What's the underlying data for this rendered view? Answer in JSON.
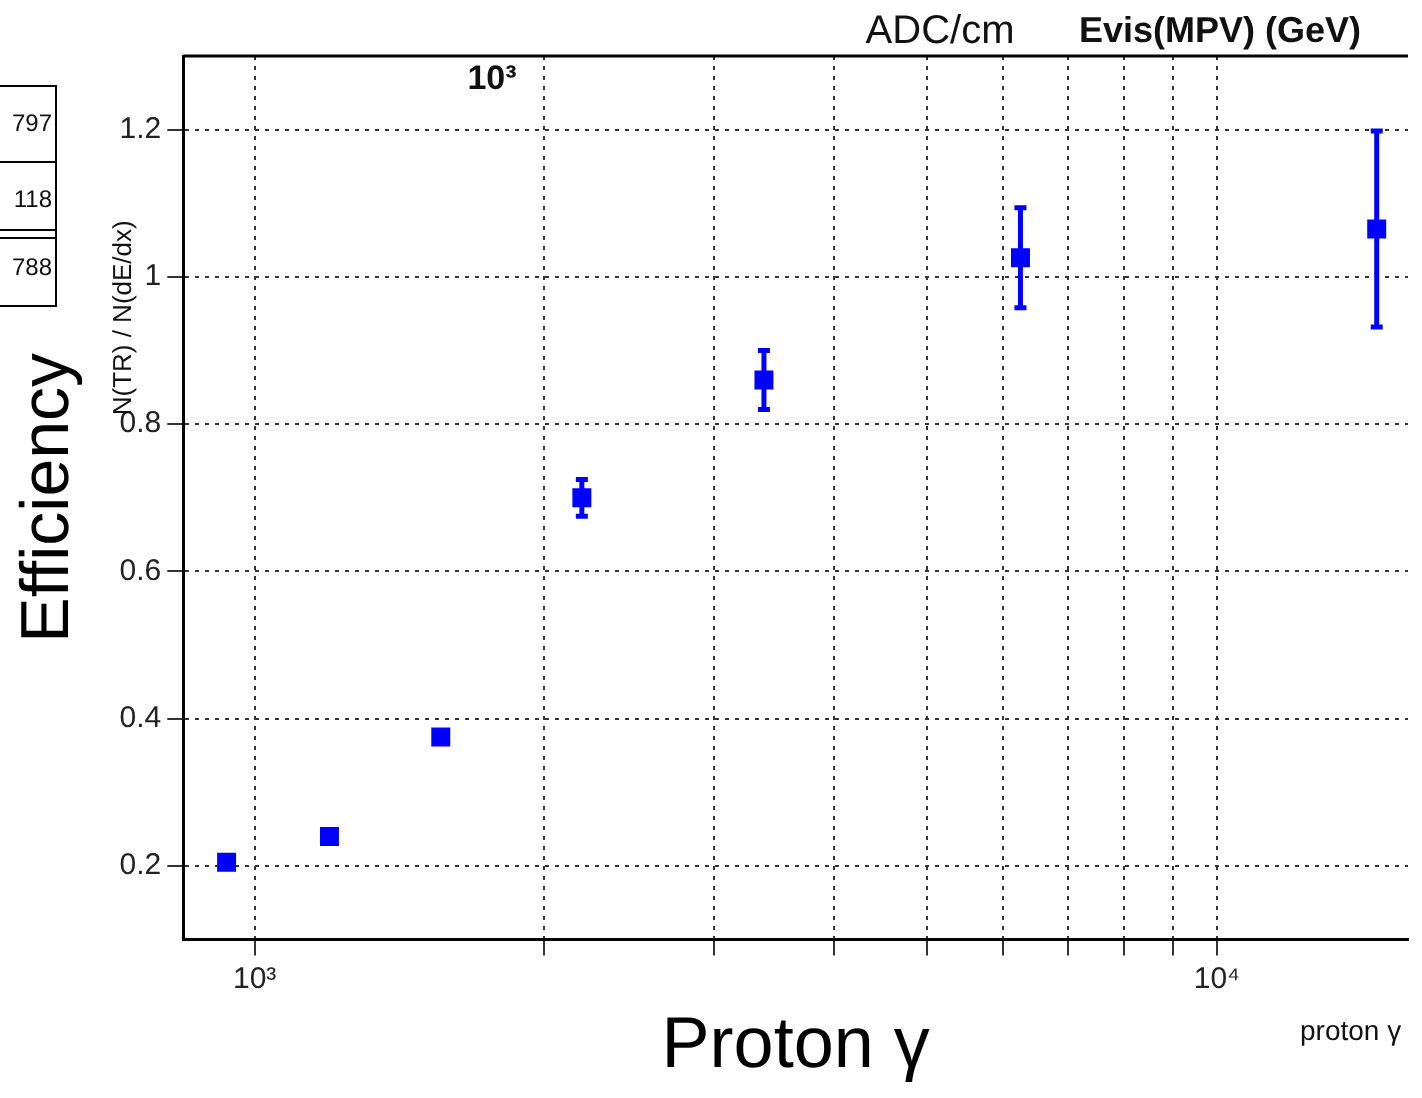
{
  "chart_data": {
    "type": "scatter",
    "xlabel": "Proton γ",
    "ylabel": "Efficiency",
    "annotations": [
      "N(TR) / N(dE/dx)",
      "ADC/cm",
      "Evis(MPV) (GeV)",
      "proton γ",
      "797",
      "118",
      "788",
      "10³"
    ],
    "x": [
      935,
      1196,
      1561,
      2188,
      3383,
      6250,
      14660
    ],
    "series": [
      {
        "color": "#0000ff",
        "values": [
          0.205,
          0.24,
          0.375,
          0.7,
          0.86,
          1.026,
          1.065
        ],
        "errors": [
          null,
          null,
          null,
          0.025,
          0.04,
          0.068,
          0.133
        ]
      }
    ],
    "log": "x",
    "xlim": [
      843,
      15800
    ],
    "xticks": [
      {
        "value": 1000,
        "label": "10³"
      },
      {
        "value": 2000,
        "label": null
      },
      {
        "value": 3000,
        "label": null
      },
      {
        "value": 4000,
        "label": null
      },
      {
        "value": 5000,
        "label": null
      },
      {
        "value": 6000,
        "label": null
      },
      {
        "value": 7000,
        "label": null
      },
      {
        "value": 8000,
        "label": null
      },
      {
        "value": 9000,
        "label": null
      },
      {
        "value": 10000,
        "label": "10⁴"
      }
    ],
    "ylim": [
      0.1,
      1.3
    ],
    "yticks": [
      0.2,
      0.4,
      0.6,
      0.8,
      1,
      1.2
    ],
    "grid": true,
    "marker": "square"
  }
}
